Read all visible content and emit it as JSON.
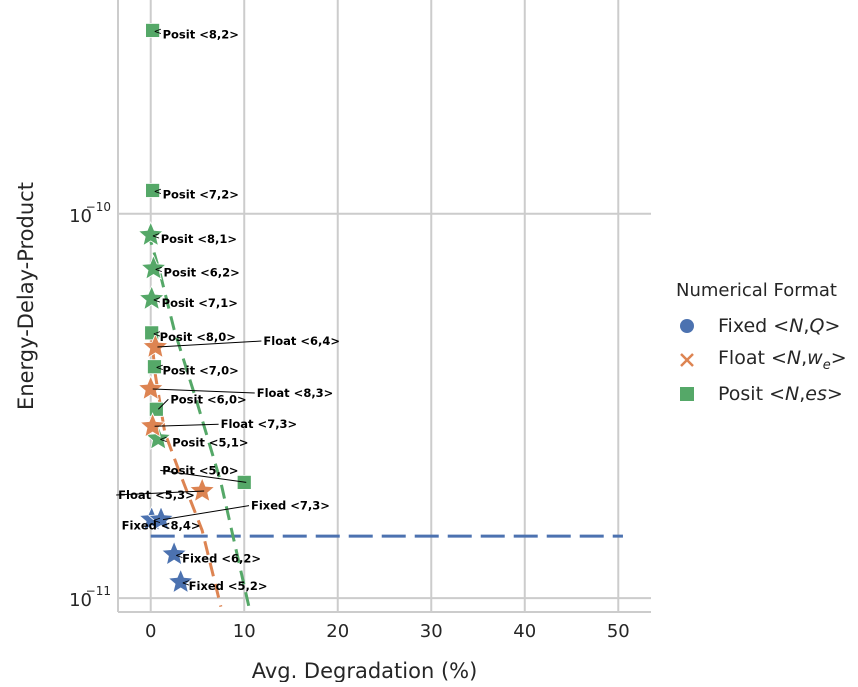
{
  "chart_data": {
    "type": "scatter",
    "xlabel": "Avg. Degradation (%)",
    "ylabel": "Energy-Delay-Product",
    "xlim": [
      -3.5,
      53.5
    ],
    "ylim": [
      9.2e-12,
      3.6e-10
    ],
    "yscale": "log",
    "x_ticks": [
      0,
      10,
      20,
      30,
      40,
      50
    ],
    "x_tick_labels": [
      "0",
      "10",
      "20",
      "30",
      "40",
      "50"
    ],
    "y_ticks": [
      1e-11,
      1e-10
    ],
    "y_tick_labels": [
      {
        "base": "10",
        "exp": "−11"
      },
      {
        "base": "10",
        "exp": "−10"
      }
    ],
    "grid": true,
    "legend_position": "right",
    "legend": {
      "title": "Numerical Format",
      "entries": [
        {
          "prefix": "Fixed <",
          "vars": [
            "N",
            "Q"
          ],
          "suffix": ">",
          "color": "#4c72b0",
          "marker": "circle"
        },
        {
          "prefix": "Float <",
          "vars": [
            "N",
            "w"
          ],
          "sub": "e",
          "suffix": ">",
          "color": "#dd8452",
          "marker": "x"
        },
        {
          "prefix": "Posit <",
          "vars": [
            "N",
            "es"
          ],
          "suffix": ">",
          "color": "#55a868",
          "marker": "square"
        }
      ]
    },
    "colors": {
      "Fixed": "#4c72b0",
      "Float": "#dd8452",
      "Posit": "#55a868",
      "grid": "#cccccc",
      "text": "#262626"
    },
    "points": [
      {
        "series": "Posit",
        "marker": "square",
        "x": 0.2,
        "y": 3e-10,
        "label": "Posit <8,2>"
      },
      {
        "series": "Posit",
        "marker": "square",
        "x": 0.2,
        "y": 1.15e-10,
        "label": "Posit <7,2>"
      },
      {
        "series": "Posit",
        "marker": "star",
        "x": 0.0,
        "y": 8.8e-11,
        "label": "Posit <8,1>"
      },
      {
        "series": "Posit",
        "marker": "star",
        "x": 0.3,
        "y": 7.2e-11,
        "label": "Posit <6,2>"
      },
      {
        "series": "Posit",
        "marker": "star",
        "x": 0.1,
        "y": 6e-11,
        "label": "Posit <7,1>"
      },
      {
        "series": "Posit",
        "marker": "square",
        "x": 0.1,
        "y": 4.9e-11,
        "label": "Posit <8,0>"
      },
      {
        "series": "Posit",
        "marker": "square",
        "x": 0.4,
        "y": 4e-11,
        "label": "Posit <7,0>"
      },
      {
        "series": "Posit",
        "marker": "square",
        "x": 0.6,
        "y": 3.1e-11,
        "label": "Posit <6,0>"
      },
      {
        "series": "Posit",
        "marker": "star",
        "x": 0.8,
        "y": 2.6e-11,
        "label": "Posit <5,1>"
      },
      {
        "series": "Posit",
        "marker": "square",
        "x": 10.0,
        "y": 2e-11,
        "label": "Posit <5,0>"
      },
      {
        "series": "Float",
        "marker": "star",
        "x": 0.5,
        "y": 4.5e-11,
        "label": "Float <6,4>"
      },
      {
        "series": "Float",
        "marker": "star",
        "x": 0.0,
        "y": 3.5e-11,
        "label": "Float <8,3>"
      },
      {
        "series": "Float",
        "marker": "star",
        "x": 0.2,
        "y": 2.8e-11,
        "label": "Float <7,3>"
      },
      {
        "series": "Float",
        "marker": "star",
        "x": 5.5,
        "y": 1.9e-11,
        "label": "Float <5,3>"
      },
      {
        "series": "Fixed",
        "marker": "star",
        "x": 0.1,
        "y": 1.6e-11,
        "label": "Fixed <8,4>"
      },
      {
        "series": "Fixed",
        "marker": "star",
        "x": 1.1,
        "y": 1.6e-11,
        "label": "Fixed <7,3>"
      },
      {
        "series": "Fixed",
        "marker": "star",
        "x": 2.5,
        "y": 1.3e-11,
        "label": "Fixed <6,2>"
      },
      {
        "series": "Fixed",
        "marker": "star",
        "x": 3.2,
        "y": 1.1e-11,
        "label": "Fixed <5,2>"
      }
    ],
    "series": [
      {
        "name": "Fixed",
        "style": "dashed-horizontal",
        "x": [
          0,
          50.5
        ],
        "y": [
          1.45e-11,
          1.45e-11
        ]
      },
      {
        "name": "Float",
        "style": "dashed",
        "x": [
          0.0,
          0.5,
          1.5,
          3.0,
          5.5,
          7.5
        ],
        "y": [
          5e-11,
          3.8e-11,
          2.7e-11,
          2.15e-11,
          1.5e-11,
          9.5e-12
        ]
      },
      {
        "name": "Posit",
        "style": "dashed",
        "x": [
          -0.3,
          1.0,
          2.5,
          5.0,
          7.5,
          10.5
        ],
        "y": [
          9e-11,
          7e-11,
          5e-11,
          3.2e-11,
          2e-11,
          9.5e-12
        ]
      }
    ]
  }
}
